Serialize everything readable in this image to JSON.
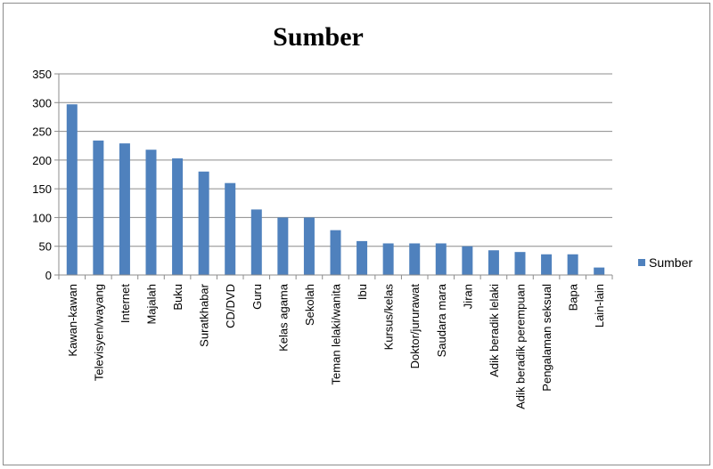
{
  "chart_data": {
    "type": "bar",
    "title": "Sumber",
    "xlabel": "",
    "ylabel": "",
    "ylim": [
      0,
      350
    ],
    "yticks": [
      0,
      50,
      100,
      150,
      200,
      250,
      300,
      350
    ],
    "grid": true,
    "legend": "right",
    "categories": [
      "Kawan-kawan",
      "Televisyen/wayang",
      "Internet",
      "Majalah",
      "Buku",
      "Suratkhabar",
      "CD/DVD",
      "Guru",
      "Kelas agama",
      "Sekolah",
      "Teman lelaki/wanita",
      "Ibu",
      "Kursus/kelas",
      "Doktor/jururawat",
      "Saudara mara",
      "Jiran",
      "Adik beradik lelaki",
      "Adik beradik perempuan",
      "Pengalaman seksual",
      "Bapa",
      "Lain-lain"
    ],
    "series": [
      {
        "name": "Sumber",
        "color": "#4f81bd",
        "values": [
          297,
          234,
          229,
          218,
          203,
          180,
          160,
          114,
          100,
          100,
          78,
          59,
          55,
          55,
          55,
          50,
          43,
          40,
          36,
          36,
          13
        ]
      }
    ]
  }
}
